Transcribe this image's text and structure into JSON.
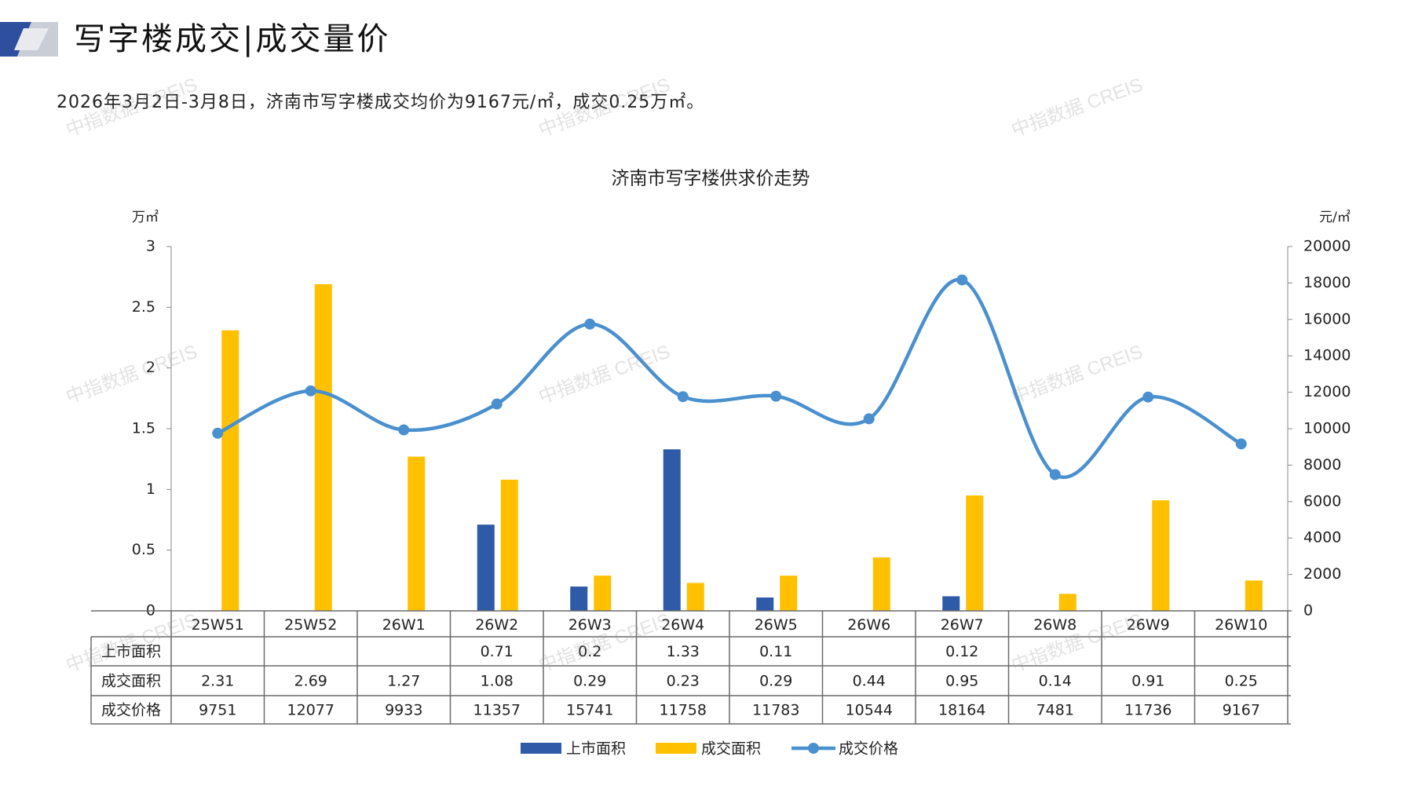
{
  "header": {
    "title": "写字楼成交|成交量价",
    "subtitle": "2026年3月2日-3月8日，济南市写字楼成交均价为9167元/㎡，成交0.25万㎡。"
  },
  "watermark": "中指数据 CREIS",
  "chart_data": {
    "type": "bar",
    "title": "济南市写字楼供求价走势",
    "categories": [
      "25W51",
      "25W52",
      "26W1",
      "26W2",
      "26W3",
      "26W4",
      "26W5",
      "26W6",
      "26W7",
      "26W8",
      "26W9",
      "26W10"
    ],
    "y_left_label": "万㎡",
    "y_right_label": "元/㎡",
    "y_left_ticks": [
      "0",
      "0.5",
      "1",
      "1.5",
      "2",
      "2.5",
      "3"
    ],
    "y_right_ticks": [
      "0",
      "2000",
      "4000",
      "6000",
      "8000",
      "10000",
      "12000",
      "14000",
      "16000",
      "18000",
      "20000"
    ],
    "ylim_left": [
      0,
      3
    ],
    "ylim_right": [
      0,
      20000
    ],
    "series": [
      {
        "name": "上市面积",
        "type": "bar",
        "axis": "left",
        "color": "#2e5aa8",
        "values": [
          null,
          null,
          null,
          0.71,
          0.2,
          1.33,
          0.11,
          null,
          0.12,
          null,
          null,
          null
        ],
        "labels": [
          "",
          "",
          "",
          "0.71",
          "0.2",
          "1.33",
          "0.11",
          "",
          "0.12",
          "",
          "",
          ""
        ]
      },
      {
        "name": "成交面积",
        "type": "bar",
        "axis": "left",
        "color": "#ffc000",
        "values": [
          2.31,
          2.69,
          1.27,
          1.08,
          0.29,
          0.23,
          0.29,
          0.44,
          0.95,
          0.14,
          0.91,
          0.25
        ],
        "labels": [
          "2.31",
          "2.69",
          "1.27",
          "1.08",
          "0.29",
          "0.23",
          "0.29",
          "0.44",
          "0.95",
          "0.14",
          "0.91",
          "0.25"
        ]
      },
      {
        "name": "成交价格",
        "type": "line",
        "axis": "right",
        "color": "#4a90cf",
        "values": [
          9751,
          12077,
          9933,
          11357,
          15741,
          11758,
          11783,
          10544,
          18164,
          7481,
          11736,
          9167
        ],
        "labels": [
          "9751",
          "12077",
          "9933",
          "11357",
          "15741",
          "11758",
          "11783",
          "10544",
          "18164",
          "7481",
          "11736",
          "9167"
        ]
      }
    ],
    "legend_position": "bottom",
    "grid": false
  }
}
